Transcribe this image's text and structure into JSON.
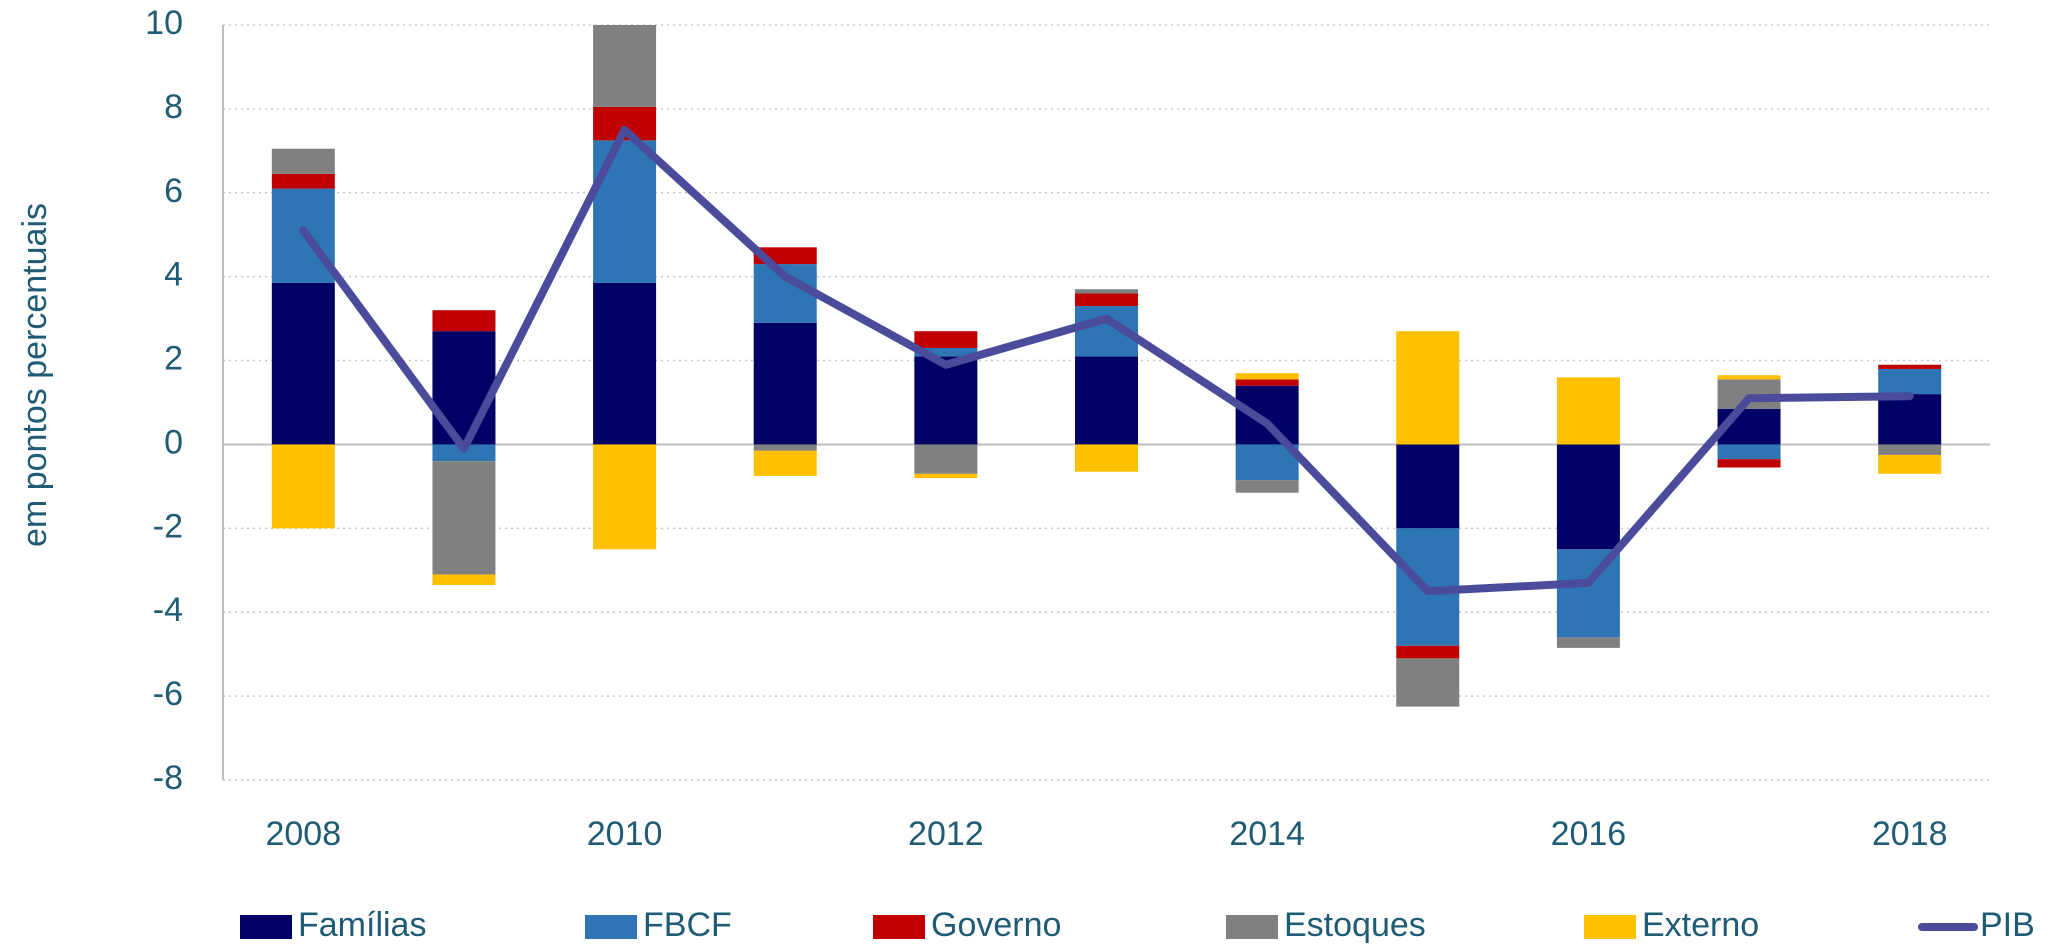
{
  "chart_data": {
    "type": "bar",
    "stacked": true,
    "y_label": "em pontos percentuais",
    "categories": [
      "2008",
      null,
      "2010",
      null,
      "2012",
      null,
      "2014",
      null,
      "2016",
      null,
      "2018"
    ],
    "ylim": [
      -8,
      10
    ],
    "yticks": [
      -8,
      -6,
      -4,
      -2,
      0,
      2,
      4,
      6,
      8,
      10
    ],
    "grid": true,
    "series": [
      {
        "name": "Famílias",
        "color": "#000066",
        "values": [
          3.85,
          2.7,
          3.85,
          2.9,
          2.1,
          2.1,
          1.4,
          -2.0,
          -2.5,
          0.85,
          1.2
        ]
      },
      {
        "name": "FBCF",
        "color": "#2e75b6",
        "values": [
          2.25,
          -0.4,
          3.4,
          1.4,
          0.2,
          1.2,
          -0.85,
          -2.8,
          -2.1,
          -0.35,
          0.6
        ]
      },
      {
        "name": "Governo",
        "color": "#c00000",
        "values": [
          0.35,
          0.5,
          0.8,
          0.4,
          0.4,
          0.3,
          0.15,
          -0.3,
          0,
          -0.2,
          0.1
        ]
      },
      {
        "name": "Estoques",
        "color": "#808080",
        "values": [
          0.6,
          -2.7,
          2.0,
          -0.15,
          -0.7,
          0.1,
          -0.3,
          -1.15,
          -0.25,
          0.7,
          -0.25
        ]
      },
      {
        "name": "Externo",
        "color": "#ffc000",
        "values": [
          -2.0,
          -0.25,
          -2.5,
          -0.6,
          -0.1,
          -0.65,
          0.15,
          2.7,
          1.6,
          0.1,
          -0.45
        ]
      },
      {
        "name": "PIB",
        "type": "line",
        "color": "#4b4b9b",
        "values": [
          5.1,
          -0.1,
          7.5,
          4.0,
          1.9,
          3.0,
          0.5,
          -3.5,
          -3.3,
          1.1,
          1.15
        ]
      }
    ]
  }
}
